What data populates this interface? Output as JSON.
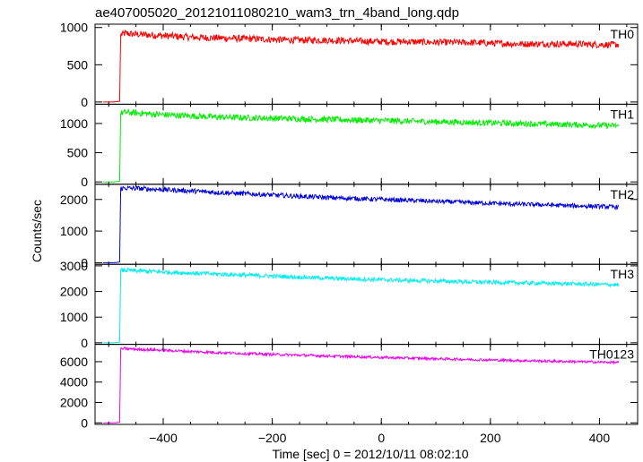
{
  "chart_data": {
    "type": "line",
    "title": "ae407005020_20121011080210_wam3_trn_4band_long.qdp",
    "xlabel": "Time [sec] 0 = 2012/10/11 08:02:10",
    "ylabel": "Counts/sec",
    "xlim": [
      -525,
      470
    ],
    "xticks": [
      -400,
      -200,
      0,
      200,
      400
    ],
    "grid": false,
    "panels": [
      {
        "name": "TH0",
        "color": "#ff0000",
        "ylim": [
          -30,
          1045
        ],
        "yticks": [
          0,
          500,
          1000
        ],
        "series": {
          "x": [
            -510,
            -490,
            -480,
            -478,
            -470,
            -450,
            -400,
            -350,
            -300,
            -250,
            -200,
            -150,
            -100,
            -50,
            0,
            50,
            100,
            150,
            200,
            250,
            300,
            350,
            400,
            435
          ],
          "values": [
            0,
            0,
            10,
            900,
            920,
            910,
            890,
            870,
            860,
            850,
            840,
            830,
            830,
            820,
            810,
            810,
            800,
            800,
            790,
            780,
            780,
            780,
            770,
            770
          ]
        }
      },
      {
        "name": "TH1",
        "color": "#00ee00",
        "ylim": [
          -40,
          1330
        ],
        "yticks": [
          0,
          500,
          1000
        ],
        "series": {
          "x": [
            -510,
            -490,
            -480,
            -478,
            -470,
            -450,
            -400,
            -350,
            -300,
            -250,
            -200,
            -150,
            -100,
            -50,
            0,
            50,
            100,
            150,
            200,
            250,
            300,
            350,
            400,
            435
          ],
          "values": [
            0,
            0,
            10,
            1180,
            1190,
            1180,
            1150,
            1130,
            1110,
            1100,
            1090,
            1080,
            1070,
            1060,
            1050,
            1040,
            1030,
            1020,
            1010,
            1000,
            990,
            980,
            970,
            960
          ]
        }
      },
      {
        "name": "TH2",
        "color": "#0000dd",
        "ylim": [
          -50,
          2480
        ],
        "yticks": [
          0,
          1000,
          2000
        ],
        "series": {
          "x": [
            -510,
            -490,
            -480,
            -478,
            -470,
            -450,
            -400,
            -350,
            -300,
            -250,
            -200,
            -150,
            -100,
            -50,
            0,
            50,
            100,
            150,
            200,
            250,
            300,
            350,
            400,
            435
          ],
          "values": [
            0,
            0,
            20,
            2350,
            2360,
            2350,
            2310,
            2270,
            2220,
            2180,
            2140,
            2100,
            2060,
            2030,
            2000,
            1970,
            1940,
            1910,
            1880,
            1850,
            1830,
            1800,
            1780,
            1760
          ]
        }
      },
      {
        "name": "TH3",
        "color": "#00eeee",
        "ylim": [
          -60,
          3060
        ],
        "yticks": [
          0,
          1000,
          2000,
          3000
        ],
        "series": {
          "x": [
            -510,
            -490,
            -480,
            -478,
            -470,
            -450,
            -400,
            -350,
            -300,
            -250,
            -200,
            -150,
            -100,
            -50,
            0,
            50,
            100,
            150,
            200,
            250,
            300,
            350,
            400,
            435
          ],
          "values": [
            0,
            0,
            30,
            2820,
            2830,
            2810,
            2760,
            2720,
            2680,
            2640,
            2600,
            2560,
            2520,
            2490,
            2460,
            2430,
            2410,
            2380,
            2360,
            2340,
            2320,
            2300,
            2280,
            2260
          ]
        }
      },
      {
        "name": "TH0123",
        "color": "#ee00ee",
        "ylim": [
          -150,
          7700
        ],
        "yticks": [
          0,
          2000,
          4000,
          6000
        ],
        "series": {
          "x": [
            -510,
            -490,
            -480,
            -478,
            -470,
            -450,
            -400,
            -350,
            -300,
            -250,
            -200,
            -150,
            -100,
            -50,
            0,
            50,
            100,
            150,
            200,
            250,
            300,
            350,
            400,
            435
          ],
          "values": [
            0,
            0,
            60,
            7250,
            7280,
            7220,
            7120,
            7000,
            6900,
            6800,
            6720,
            6640,
            6560,
            6490,
            6420,
            6350,
            6290,
            6230,
            6170,
            6110,
            6060,
            6010,
            5960,
            5920
          ]
        }
      }
    ]
  }
}
